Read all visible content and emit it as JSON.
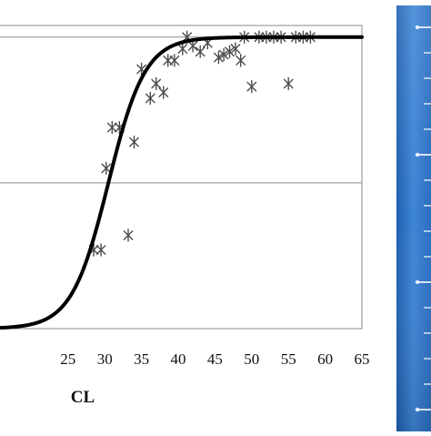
{
  "chart_data": {
    "type": "scatter",
    "xlabel": "CL",
    "ylabel": "",
    "title": "",
    "xlim": [
      15.5,
      65
    ],
    "ylim": [
      0,
      1.04
    ],
    "x_ticks": [
      25,
      30,
      35,
      40,
      45,
      50,
      55,
      60,
      65
    ],
    "x_tick_labels": [
      "25",
      "30",
      "35",
      "40",
      "45",
      "50",
      "55",
      "60",
      "65"
    ],
    "y_gridlines": [
      0.5,
      1.0
    ],
    "grid": "horizontal",
    "series": [
      {
        "type": "scatter",
        "marker": "asterisk",
        "points": [
          [
            28.5,
            0.27
          ],
          [
            29.5,
            0.27
          ],
          [
            30.2,
            0.55
          ],
          [
            31.0,
            0.69
          ],
          [
            32.0,
            0.69
          ],
          [
            33.2,
            0.32
          ],
          [
            34.0,
            0.64
          ],
          [
            35.0,
            0.89
          ],
          [
            36.2,
            0.79
          ],
          [
            37.0,
            0.84
          ],
          [
            38.0,
            0.81
          ],
          [
            38.6,
            0.92
          ],
          [
            39.5,
            0.92
          ],
          [
            40.6,
            0.96
          ],
          [
            41.2,
            1.0
          ],
          [
            42.0,
            0.97
          ],
          [
            43.0,
            0.95
          ],
          [
            44.0,
            0.98
          ],
          [
            45.5,
            0.93
          ],
          [
            46.2,
            0.94
          ],
          [
            47.0,
            0.95
          ],
          [
            47.8,
            0.96
          ],
          [
            48.5,
            0.92
          ],
          [
            49.0,
            1.0
          ],
          [
            50.0,
            0.83
          ],
          [
            51.0,
            1.0
          ],
          [
            52.0,
            1.0
          ],
          [
            53.0,
            1.0
          ],
          [
            54.0,
            1.0
          ],
          [
            55.0,
            0.84
          ],
          [
            56.0,
            1.0
          ],
          [
            57.0,
            1.0
          ],
          [
            58.0,
            1.0
          ]
        ]
      },
      {
        "type": "line",
        "model": "logistic",
        "midpoint": 30.5,
        "scale": 2.5,
        "x_range": [
          15.5,
          65
        ]
      }
    ]
  }
}
